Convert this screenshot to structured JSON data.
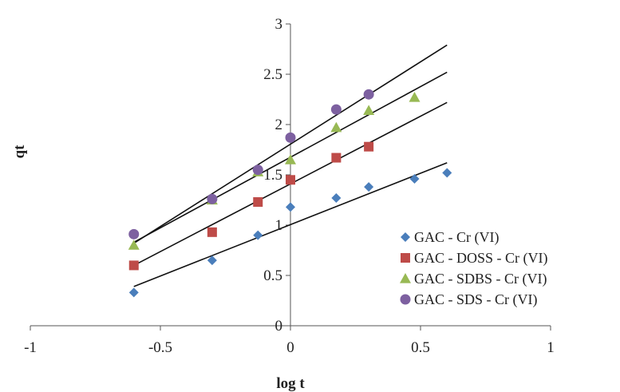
{
  "chart_data": {
    "type": "scatter",
    "title": "",
    "xlabel": "log t",
    "ylabel": "qt",
    "xlim": [
      -1,
      1
    ],
    "ylim": [
      0,
      3
    ],
    "x_ticks": [
      "-1",
      "-0.5",
      "0",
      "0.5",
      "1"
    ],
    "y_ticks": [
      "0",
      "0.5",
      "1",
      "1.5",
      "2",
      "2.5",
      "3"
    ],
    "grid": false,
    "legend_position": "bottom-right",
    "series": [
      {
        "name": "GAC - Cr (VI)",
        "marker": "diamond",
        "color": "#4a7ebb",
        "x": [
          -0.602,
          -0.301,
          -0.125,
          0.0,
          0.176,
          0.301,
          0.477,
          0.602
        ],
        "y": [
          0.33,
          0.65,
          0.9,
          1.18,
          1.27,
          1.38,
          1.46,
          1.52
        ],
        "fit": {
          "x": [
            -0.602,
            0.602
          ],
          "y": [
            0.39,
            1.62
          ]
        }
      },
      {
        "name": "GAC - DOSS - Cr (VI)",
        "marker": "square",
        "color": "#be4b48",
        "x": [
          -0.602,
          -0.301,
          -0.125,
          0.0,
          0.176,
          0.301
        ],
        "y": [
          0.6,
          0.93,
          1.23,
          1.45,
          1.67,
          1.78
        ],
        "fit": {
          "x": [
            -0.602,
            0.602
          ],
          "y": [
            0.6,
            2.22
          ]
        }
      },
      {
        "name": "GAC - SDBS - Cr (VI)",
        "marker": "triangle",
        "color": "#98b954",
        "x": [
          -0.602,
          -0.301,
          -0.125,
          0.0,
          0.176,
          0.301,
          0.477
        ],
        "y": [
          0.8,
          1.25,
          1.53,
          1.65,
          1.97,
          2.14,
          2.27
        ],
        "fit": {
          "x": [
            -0.602,
            0.602
          ],
          "y": [
            0.83,
            2.52
          ]
        }
      },
      {
        "name": "GAC - SDS - Cr (VI)",
        "marker": "circle",
        "color": "#7d60a0",
        "x": [
          -0.602,
          -0.301,
          -0.125,
          0.0,
          0.176,
          0.301
        ],
        "y": [
          0.91,
          1.26,
          1.55,
          1.87,
          2.15,
          2.3
        ],
        "fit": {
          "x": [
            -0.602,
            0.602
          ],
          "y": [
            0.82,
            2.79
          ]
        }
      }
    ]
  }
}
